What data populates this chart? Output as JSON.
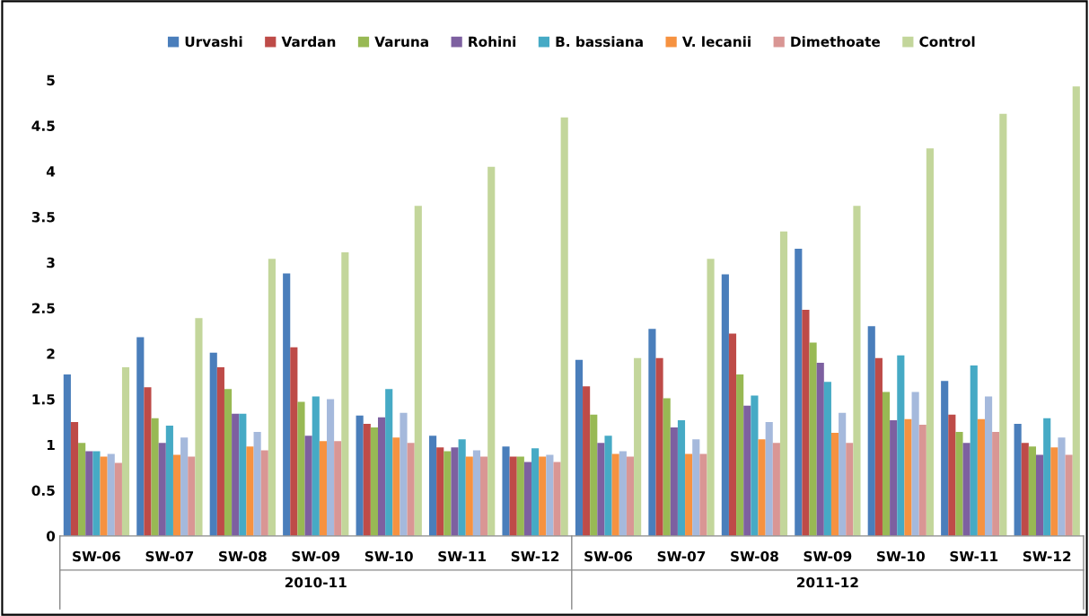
{
  "chart_data": {
    "type": "bar",
    "categories": [
      "SW-06",
      "SW-07",
      "SW-08",
      "SW-09",
      "SW-10",
      "SW-11",
      "SW-12",
      "SW-06",
      "SW-07",
      "SW-08",
      "SW-09",
      "SW-10",
      "SW-11",
      "SW-12"
    ],
    "series": [
      {
        "name": "Urvashi",
        "color": "#4a7ebb",
        "values": [
          1.77,
          2.18,
          2.01,
          2.88,
          1.32,
          1.1,
          0.98,
          1.93,
          2.27,
          2.87,
          3.15,
          2.3,
          1.7,
          1.23
        ]
      },
      {
        "name": "Vardan",
        "color": "#be4b48",
        "values": [
          1.25,
          1.63,
          1.85,
          2.07,
          1.23,
          0.97,
          0.87,
          1.64,
          1.95,
          2.22,
          2.48,
          1.95,
          1.33,
          1.02
        ]
      },
      {
        "name": "Varuna",
        "color": "#98b954",
        "values": [
          1.02,
          1.29,
          1.61,
          1.47,
          1.19,
          0.93,
          0.87,
          1.33,
          1.51,
          1.77,
          2.12,
          1.58,
          1.14,
          0.98
        ]
      },
      {
        "name": "Rohini",
        "color": "#7d60a0",
        "values": [
          0.93,
          1.02,
          1.34,
          1.1,
          1.3,
          0.97,
          0.81,
          1.02,
          1.19,
          1.43,
          1.9,
          1.27,
          1.02,
          0.89
        ]
      },
      {
        "name": "B. bassiana",
        "color": "#46aac5",
        "values": [
          0.93,
          1.21,
          1.34,
          1.53,
          1.61,
          1.06,
          0.96,
          1.1,
          1.27,
          1.54,
          1.69,
          1.98,
          1.87,
          1.29
        ]
      },
      {
        "name": "V. lecanii",
        "color": "#f69240",
        "values": [
          0.87,
          0.89,
          0.98,
          1.04,
          1.08,
          0.87,
          0.87,
          0.9,
          0.9,
          1.06,
          1.13,
          1.28,
          1.28,
          0.97
        ]
      },
      {
        "color": "#a5b9dc",
        "values": [
          0.9,
          1.08,
          1.14,
          1.5,
          1.35,
          0.94,
          0.89,
          0.93,
          1.06,
          1.25,
          1.35,
          1.58,
          1.53,
          1.08
        ]
      },
      {
        "name": "Dimethoate",
        "color": "#d99694",
        "values": [
          0.8,
          0.87,
          0.94,
          1.04,
          1.02,
          0.87,
          0.81,
          0.87,
          0.9,
          1.02,
          1.02,
          1.22,
          1.14,
          0.89
        ]
      },
      {
        "name": "Control",
        "color": "#c3d69b",
        "values": [
          1.85,
          2.39,
          3.04,
          3.11,
          3.62,
          4.05,
          4.59,
          1.95,
          3.04,
          3.34,
          3.62,
          4.25,
          4.63,
          4.93
        ]
      }
    ],
    "annotations": [
      "2010-11",
      "2011-12"
    ],
    "ylim": [
      0,
      5
    ],
    "yticks": [
      0,
      0.5,
      1,
      1.5,
      2,
      2.5,
      3,
      3.5,
      4,
      4.5,
      5
    ],
    "grid": false,
    "legend": "top"
  }
}
